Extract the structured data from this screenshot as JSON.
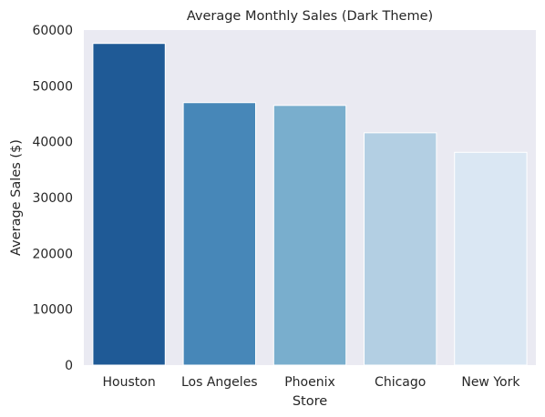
{
  "chart_data": {
    "type": "bar",
    "title": "Average Monthly Sales (Dark Theme)",
    "xlabel": "Store",
    "ylabel": "Average Sales ($)",
    "categories": [
      "Houston",
      "Los Angeles",
      "Phoenix",
      "Chicago",
      "New York"
    ],
    "values": [
      57600,
      47000,
      46500,
      41600,
      38100
    ],
    "bar_colors": [
      "#1f5a96",
      "#4787b8",
      "#79aecd",
      "#b3cfe3",
      "#dae7f3"
    ],
    "ylim": [
      0,
      60000
    ],
    "yticks": [
      0,
      10000,
      20000,
      30000,
      40000,
      50000,
      60000
    ],
    "ytick_labels": [
      "0",
      "10000",
      "20000",
      "30000",
      "40000",
      "50000",
      "60000"
    ],
    "grid": false,
    "legend": "none",
    "plot_background": "#eaeaf2"
  }
}
